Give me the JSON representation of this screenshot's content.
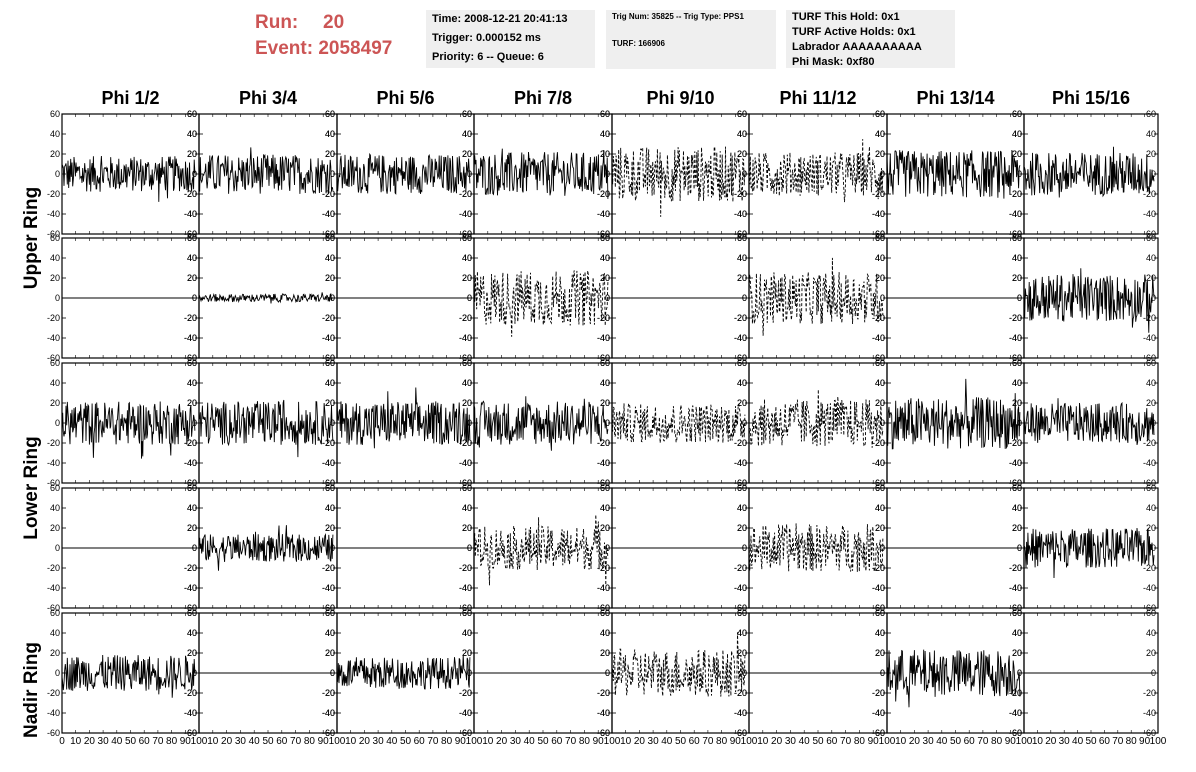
{
  "header": {
    "run_label": "Run:",
    "run_value": "20",
    "event_label": "Event:",
    "event_value": "2058497",
    "time": "Time: 2008-12-21 20:41:13",
    "trigger": "Trigger: 0.000152 ms",
    "priority": "Priority: 6 -- Queue: 6",
    "trig_num": "Trig Num: 35825 -- Trig Type: PPS1",
    "turf": "TURF: 166906",
    "turf_this_hold": "TURF This Hold: 0x1",
    "turf_active_holds": "TURF Active Holds: 0x1",
    "labrador": "Labrador AAAAAAAAAA",
    "phi_mask": "Phi Mask: 0xf80"
  },
  "chart_data": {
    "type": "line",
    "columns": [
      "Phi 1/2",
      "Phi 3/4",
      "Phi 5/6",
      "Phi 7/8",
      "Phi 9/10",
      "Phi 11/12",
      "Phi 13/14",
      "Phi 15/16"
    ],
    "ring_labels": [
      "Upper Ring",
      "Lower Ring",
      "Nadir Ring"
    ],
    "xlim": [
      0,
      100
    ],
    "ylim": [
      -60,
      60
    ],
    "y_ticks": [
      60,
      40,
      20,
      0,
      -20,
      -40,
      -60
    ],
    "x_ticks": [
      0,
      10,
      20,
      30,
      40,
      50,
      60,
      70,
      80,
      90,
      100
    ],
    "grid": false,
    "rows": [
      {
        "ring": "Upper Ring",
        "amplitudes": [
          18,
          20,
          20,
          22,
          28,
          22,
          24,
          22
        ],
        "dashed": [
          false,
          false,
          false,
          false,
          true,
          true,
          false,
          false
        ]
      },
      {
        "ring": "Upper Ring",
        "amplitudes": [
          0,
          4,
          0,
          28,
          0,
          26,
          0,
          24
        ],
        "dashed": [
          false,
          false,
          false,
          true,
          false,
          true,
          false,
          false
        ]
      },
      {
        "ring": "Lower Ring",
        "amplitudes": [
          22,
          22,
          22,
          22,
          20,
          24,
          26,
          20
        ],
        "dashed": [
          false,
          false,
          false,
          false,
          true,
          true,
          false,
          false
        ]
      },
      {
        "ring": "Lower Ring",
        "amplitudes": [
          0,
          14,
          0,
          22,
          0,
          24,
          0,
          20
        ],
        "dashed": [
          false,
          false,
          false,
          true,
          false,
          true,
          false,
          false
        ]
      },
      {
        "ring": "Nadir Ring",
        "amplitudes": [
          18,
          0,
          16,
          0,
          24,
          0,
          24,
          0
        ],
        "dashed": [
          false,
          false,
          false,
          false,
          true,
          false,
          false,
          false
        ]
      }
    ]
  }
}
